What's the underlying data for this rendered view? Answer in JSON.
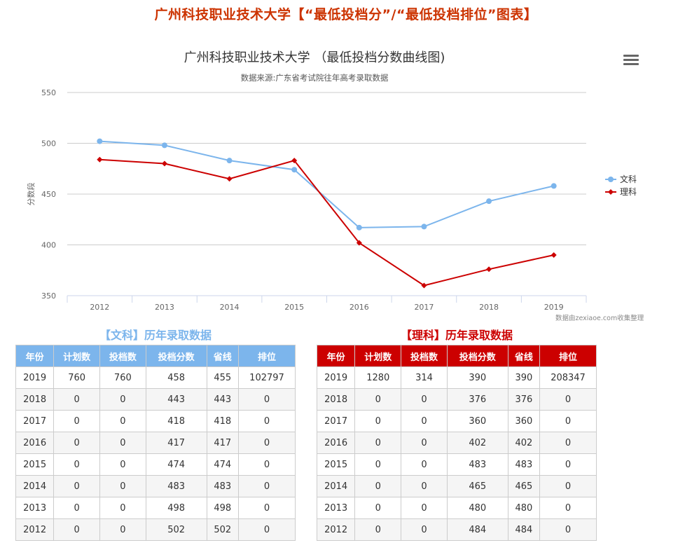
{
  "page": {
    "title": "广州科技职业技术大学【“最低投档分”/“最低投档排位”图表】"
  },
  "colors": {
    "title": "#cc3300",
    "wenke": "#7cb5ec",
    "like": "#cc0000",
    "grid": "#cccccc",
    "axis": "#ccd6eb"
  },
  "chart": {
    "title": "广州科技职业技术大学 （最低投档分数曲线图)",
    "subtitle": "数据来源:广东省考试院往年高考录取数据",
    "menu_icon": "hamburger-menu-icon",
    "credit": "数据由zexiaoe.com收集整理",
    "ylabel": "分数段",
    "yticks": [
      "550",
      "500",
      "450",
      "400",
      "350"
    ],
    "xticks": [
      "2012",
      "2013",
      "2014",
      "2015",
      "2016",
      "2017",
      "2018",
      "2019"
    ],
    "legend": [
      {
        "label": "文科",
        "marker": "circle"
      },
      {
        "label": "理科",
        "marker": "diamond"
      }
    ]
  },
  "chart_data": {
    "type": "line",
    "title": "广州科技职业技术大学 （最低投档分数曲线图)",
    "subtitle": "数据来源:广东省考试院往年高考录取数据",
    "xlabel": "",
    "ylabel": "分数段",
    "x": [
      "2012",
      "2013",
      "2014",
      "2015",
      "2016",
      "2017",
      "2018",
      "2019"
    ],
    "ylim": [
      350,
      550
    ],
    "yticks": [
      350,
      400,
      450,
      500,
      550
    ],
    "grid": true,
    "legend_position": "right",
    "series": [
      {
        "name": "文科",
        "color": "#7cb5ec",
        "marker": "circle",
        "values": [
          502,
          498,
          483,
          474,
          417,
          418,
          443,
          458
        ]
      },
      {
        "name": "理科",
        "color": "#cc0000",
        "marker": "diamond",
        "values": [
          484,
          480,
          465,
          483,
          402,
          360,
          376,
          390
        ]
      }
    ]
  },
  "tables": {
    "wenke": {
      "caption": "【文科】历年录取数据",
      "headers": [
        "年份",
        "计划数",
        "投档数",
        "投档分数",
        "省线",
        "排位"
      ],
      "rows": [
        [
          "2019",
          "760",
          "760",
          "458",
          "455",
          "102797"
        ],
        [
          "2018",
          "0",
          "0",
          "443",
          "443",
          "0"
        ],
        [
          "2017",
          "0",
          "0",
          "418",
          "418",
          "0"
        ],
        [
          "2016",
          "0",
          "0",
          "417",
          "417",
          "0"
        ],
        [
          "2015",
          "0",
          "0",
          "474",
          "474",
          "0"
        ],
        [
          "2014",
          "0",
          "0",
          "483",
          "483",
          "0"
        ],
        [
          "2013",
          "0",
          "0",
          "498",
          "498",
          "0"
        ],
        [
          "2012",
          "0",
          "0",
          "502",
          "502",
          "0"
        ]
      ]
    },
    "like": {
      "caption": "【理科】历年录取数据",
      "headers": [
        "年份",
        "计划数",
        "投档数",
        "投档分数",
        "省线",
        "排位"
      ],
      "rows": [
        [
          "2019",
          "1280",
          "314",
          "390",
          "390",
          "208347"
        ],
        [
          "2018",
          "0",
          "0",
          "376",
          "376",
          "0"
        ],
        [
          "2017",
          "0",
          "0",
          "360",
          "360",
          "0"
        ],
        [
          "2016",
          "0",
          "0",
          "402",
          "402",
          "0"
        ],
        [
          "2015",
          "0",
          "0",
          "483",
          "483",
          "0"
        ],
        [
          "2014",
          "0",
          "0",
          "465",
          "465",
          "0"
        ],
        [
          "2013",
          "0",
          "0",
          "480",
          "480",
          "0"
        ],
        [
          "2012",
          "0",
          "0",
          "484",
          "484",
          "0"
        ]
      ]
    }
  }
}
